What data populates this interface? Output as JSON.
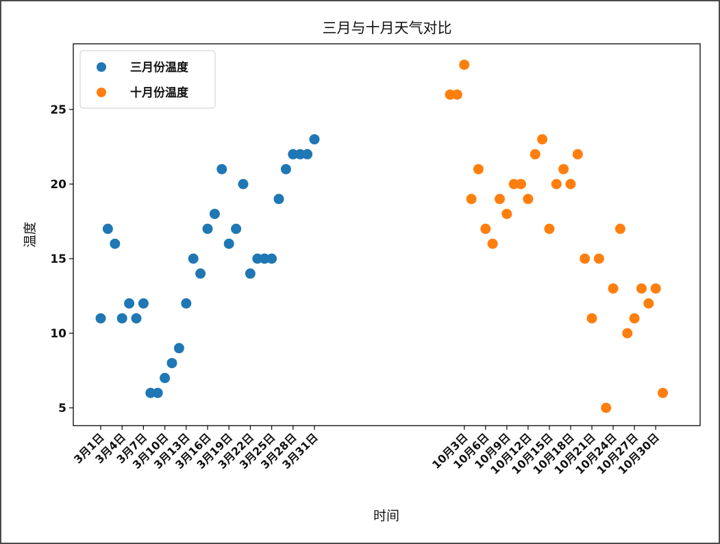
{
  "chart_data": {
    "type": "scatter",
    "title": "三月与十月天气对比",
    "xlabel": "时间",
    "ylabel": "温度",
    "yticks": [
      5,
      10,
      15,
      20,
      25
    ],
    "legend_position": "top-left",
    "grid": false,
    "series": [
      {
        "name": "三月份温度",
        "color": "#1f77b4",
        "tick_labels": [
          "3月1日",
          "3月4日",
          "3月7日",
          "3月10日",
          "3月13日",
          "3月16日",
          "3月19日",
          "3月22日",
          "3月25日",
          "3月28日",
          "3月31日"
        ],
        "tick_days": [
          1,
          4,
          7,
          10,
          13,
          16,
          19,
          22,
          25,
          28,
          31
        ],
        "days": [
          1,
          2,
          3,
          4,
          5,
          6,
          7,
          8,
          9,
          10,
          11,
          12,
          13,
          14,
          15,
          16,
          17,
          18,
          19,
          20,
          21,
          22,
          23,
          24,
          25,
          26,
          27,
          28,
          29,
          30,
          31
        ],
        "values": [
          11,
          17,
          16,
          11,
          12,
          11,
          12,
          6,
          6,
          7,
          8,
          9,
          12,
          15,
          14,
          17,
          18,
          21,
          16,
          17,
          20,
          14,
          15,
          15,
          15,
          19,
          21,
          22,
          22,
          22,
          23
        ]
      },
      {
        "name": "十月份温度",
        "color": "#ff7f0e",
        "tick_labels": [
          "10月3日",
          "10月6日",
          "10月9日",
          "10月12日",
          "10月15日",
          "10月18日",
          "10月21日",
          "10月24日",
          "10月27日",
          "10月30日"
        ],
        "tick_days": [
          3,
          6,
          9,
          12,
          15,
          18,
          21,
          24,
          27,
          30
        ],
        "days": [
          1,
          2,
          3,
          4,
          5,
          6,
          7,
          8,
          9,
          10,
          11,
          12,
          13,
          14,
          15,
          16,
          17,
          18,
          19,
          20,
          21,
          22,
          23,
          24,
          25,
          26,
          27,
          28,
          29,
          30,
          31
        ],
        "values": [
          26,
          26,
          28,
          19,
          21,
          17,
          16,
          19,
          18,
          20,
          20,
          19,
          22,
          23,
          17,
          20,
          21,
          20,
          22,
          15,
          11,
          15,
          5,
          13,
          17,
          10,
          11,
          13,
          12,
          13,
          6
        ]
      }
    ]
  }
}
